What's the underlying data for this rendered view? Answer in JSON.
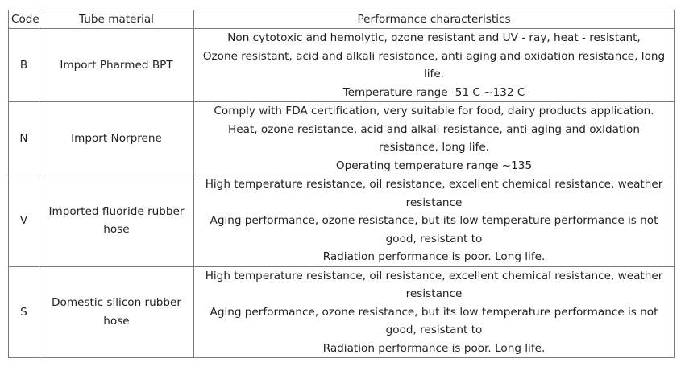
{
  "table": {
    "header": [
      "Code",
      "Tube material",
      "Performance characteristics"
    ],
    "rows": [
      [
        "B",
        "Import Pharmed BPT",
        [
          "Non cytotoxic and hemolytic, ozone resistant and UV - ray, heat - resistant,",
          "Ozone resistant, acid and alkali resistance, anti aging and oxidation resistance, long life.",
          "Temperature range -51 C ~132 C"
        ]
      ],
      [
        "N",
        "Import Norprene",
        [
          "Comply with FDA certification, very suitable for food, dairy products application.",
          "Heat, ozone resistance, acid and alkali resistance, anti-aging and oxidation resistance, long life.",
          "Operating temperature range ~135"
        ]
      ],
      [
        "V",
        "Imported fluoride rubber hose",
        [
          "High temperature resistance, oil resistance, excellent chemical resistance, weather resistance",
          "Aging performance, ozone resistance, but its low temperature performance is not good, resistant to",
          "Radiation performance is poor. Long life."
        ]
      ],
      [
        "S",
        "Domestic silicon rubber hose",
        [
          "High temperature resistance, oil resistance, excellent chemical resistance, weather resistance",
          "Aging performance, ozone resistance, but its low temperature performance is not good, resistant to",
          "Radiation performance is poor. Long life."
        ]
      ]
    ]
  }
}
